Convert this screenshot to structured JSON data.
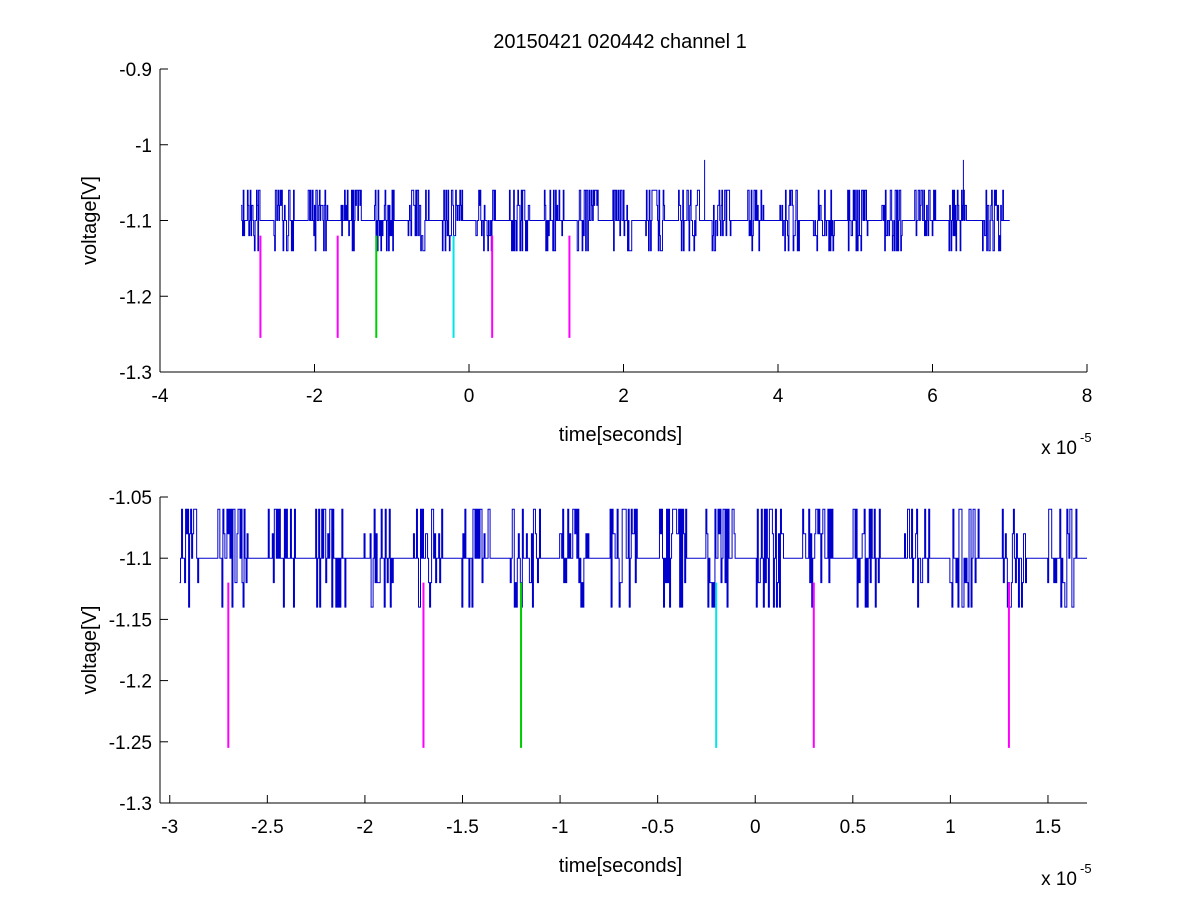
{
  "figure": {
    "title": "20150421 020442 channel 1"
  },
  "chart_data": [
    {
      "type": "line",
      "xlabel": "time[seconds]",
      "ylabel": "voltage[V]",
      "x_multiplier_label": "x 10",
      "x_multiplier_exp": "-5",
      "xlim": [
        -4,
        8
      ],
      "ylim": [
        -1.3,
        -0.9
      ],
      "xticks": [
        -4,
        -2,
        0,
        2,
        4,
        6,
        8
      ],
      "xtick_labels": [
        "-4",
        "-2",
        "0",
        "2",
        "4",
        "6",
        "8"
      ],
      "yticks": [
        -1.3,
        -1.2,
        -1.1,
        -1,
        -0.9
      ],
      "ytick_labels": [
        "-1.3",
        "-1.2",
        "-1.1",
        "-1",
        "-0.9"
      ],
      "series": [
        {
          "color": "#0000cc",
          "x_range": [
            -2.95,
            7.0
          ],
          "baseline": -1.1,
          "levels": [
            -1.14,
            -1.12,
            -1.1,
            -1.08,
            -1.06,
            -1.02
          ]
        }
      ],
      "markers": [
        {
          "x": -2.7,
          "y_top": -1.12,
          "y_bottom": -1.255,
          "color": "#ff00ff"
        },
        {
          "x": -1.7,
          "y_top": -1.12,
          "y_bottom": -1.255,
          "color": "#ff00ff"
        },
        {
          "x": -1.2,
          "y_top": -1.12,
          "y_bottom": -1.255,
          "color": "#00cc00"
        },
        {
          "x": -0.2,
          "y_top": -1.12,
          "y_bottom": -1.255,
          "color": "#00e5e5"
        },
        {
          "x": 0.3,
          "y_top": -1.12,
          "y_bottom": -1.255,
          "color": "#ff00ff"
        },
        {
          "x": 1.3,
          "y_top": -1.12,
          "y_bottom": -1.255,
          "color": "#ff00ff"
        }
      ],
      "spikes": [
        {
          "x": 3.05,
          "y": -1.02
        },
        {
          "x": 6.4,
          "y": -1.02
        }
      ]
    },
    {
      "type": "line",
      "xlabel": "time[seconds]",
      "ylabel": "voltage[V]",
      "x_multiplier_label": "x 10",
      "x_multiplier_exp": "-5",
      "xlim": [
        -3.05,
        1.7
      ],
      "ylim": [
        -1.3,
        -1.05
      ],
      "xticks": [
        -3,
        -2.5,
        -2,
        -1.5,
        -1,
        -0.5,
        0,
        0.5,
        1,
        1.5
      ],
      "xtick_labels": [
        "-3",
        "-2.5",
        "-2",
        "-1.5",
        "-1",
        "-0.5",
        "0",
        "0.5",
        "1",
        "1.5"
      ],
      "yticks": [
        -1.3,
        -1.25,
        -1.2,
        -1.15,
        -1.1,
        -1.05
      ],
      "ytick_labels": [
        "-1.3",
        "-1.25",
        "-1.2",
        "-1.15",
        "-1.1",
        "-1.05"
      ],
      "series": [
        {
          "color": "#0000cc",
          "x_range": [
            -2.95,
            1.7
          ],
          "baseline": -1.1,
          "levels": [
            -1.14,
            -1.12,
            -1.1,
            -1.08,
            -1.06
          ]
        }
      ],
      "markers": [
        {
          "x": -2.7,
          "y_top": -1.12,
          "y_bottom": -1.255,
          "color": "#ff00ff"
        },
        {
          "x": -1.7,
          "y_top": -1.12,
          "y_bottom": -1.255,
          "color": "#ff00ff"
        },
        {
          "x": -1.2,
          "y_top": -1.12,
          "y_bottom": -1.255,
          "color": "#00cc00"
        },
        {
          "x": -0.2,
          "y_top": -1.12,
          "y_bottom": -1.255,
          "color": "#00e5e5"
        },
        {
          "x": 0.3,
          "y_top": -1.12,
          "y_bottom": -1.255,
          "color": "#ff00ff"
        },
        {
          "x": 1.3,
          "y_top": -1.12,
          "y_bottom": -1.255,
          "color": "#ff00ff"
        }
      ],
      "spikes": []
    }
  ]
}
